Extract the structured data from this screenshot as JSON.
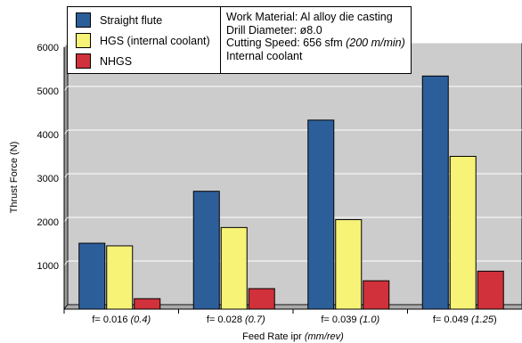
{
  "chart_data": {
    "type": "bar",
    "categories": [
      {
        "main": "f= 0.016 ",
        "italic": "(0.4)",
        "tail": ""
      },
      {
        "main": "f= 0.028 ",
        "italic": "(0.7)",
        "tail": ""
      },
      {
        "main": "f= 0.039 ",
        "italic": "(1.0)",
        "tail": ""
      },
      {
        "main": "f= 0.049 ",
        "italic": "(1.25",
        "tail": ")"
      }
    ],
    "series": [
      {
        "name": "Straight flute",
        "color": "#2c5f9a",
        "values": [
          1510,
          2700,
          4330,
          5340
        ]
      },
      {
        "name": "HGS (internal coolant)",
        "color": "#f7f377",
        "values": [
          1450,
          1870,
          2050,
          3500
        ]
      },
      {
        "name": "NHGS",
        "color": "#d0313a",
        "values": [
          240,
          470,
          650,
          870
        ]
      }
    ],
    "xlabel": {
      "main": "Feed Rate ipr ",
      "italic": "(mm/rev)"
    },
    "ylabel": "Thrust Force (N)",
    "ylim": [
      0,
      6000
    ],
    "yticks": [
      1000,
      2000,
      3000,
      4000,
      5000,
      6000
    ],
    "grid": true,
    "legend_position": "top",
    "notes": [
      {
        "text": "Work Material: Al alloy die casting",
        "italic": ""
      },
      {
        "text": "Drill Diameter: ø8.0",
        "italic": ""
      },
      {
        "text": "Cutting Speed: 656 sfm ",
        "italic": "(200 m/min)"
      },
      {
        "text": "Internal coolant",
        "italic": ""
      }
    ],
    "colors": {
      "plot_background": "#cccccc",
      "grid": "#ffffff",
      "depth_face": "#9a9a9a",
      "floor": "#aaaaaa"
    }
  }
}
